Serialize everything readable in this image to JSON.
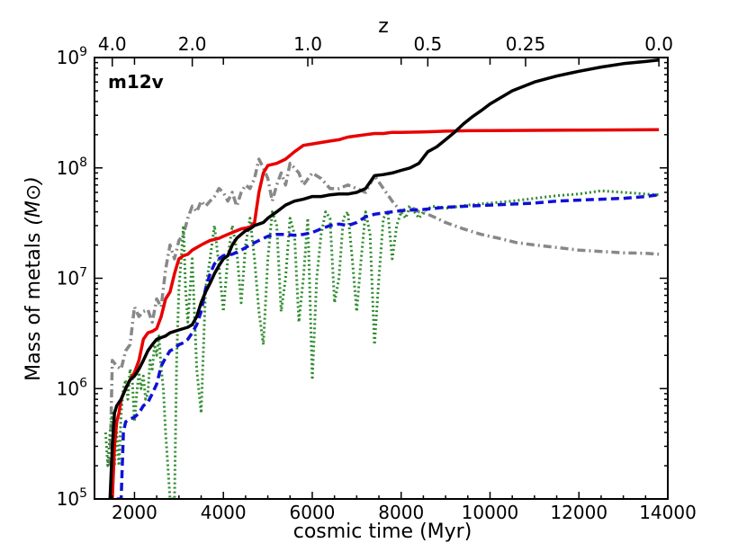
{
  "chart_data": {
    "type": "line",
    "panel_label": "m12v",
    "xlabel": "cosmic time (Myr)",
    "ylabel": "Mass of metals",
    "ylabel_unit": "(M⊙)",
    "top_axis_label": "z",
    "xlim": [
      1100,
      14000
    ],
    "ylim_log10": [
      5,
      9
    ],
    "yscale": "log",
    "x_ticks": [
      2000,
      4000,
      6000,
      8000,
      10000,
      12000,
      14000
    ],
    "x_tick_labels": [
      "2000",
      "4000",
      "6000",
      "8000",
      "10000",
      "12000",
      "14000"
    ],
    "y_ticks_log10": [
      5,
      6,
      7,
      8,
      9
    ],
    "y_tick_labels": [
      {
        "base": "10",
        "exp": "5"
      },
      {
        "base": "10",
        "exp": "6"
      },
      {
        "base": "10",
        "exp": "7"
      },
      {
        "base": "10",
        "exp": "8"
      },
      {
        "base": "10",
        "exp": "9"
      }
    ],
    "top_ticks": [
      {
        "z_label": "4.0",
        "time": 1500
      },
      {
        "z_label": "2.0",
        "time": 3300
      },
      {
        "z_label": "1.0",
        "time": 5900
      },
      {
        "z_label": "0.5",
        "time": 8600
      },
      {
        "z_label": "0.25",
        "time": 10800
      },
      {
        "z_label": "0.0",
        "time": 13800
      }
    ],
    "series": [
      {
        "name": "gray dash-dot",
        "color": "#888888",
        "style": "dashdot",
        "x": [
          1450,
          1500,
          1600,
          1700,
          1800,
          1900,
          2000,
          2100,
          2200,
          2300,
          2400,
          2500,
          2600,
          2700,
          2800,
          2900,
          3000,
          3100,
          3200,
          3300,
          3400,
          3500,
          3600,
          3700,
          3800,
          3900,
          4000,
          4100,
          4200,
          4300,
          4400,
          4500,
          4600,
          4700,
          4800,
          4900,
          5000,
          5100,
          5200,
          5300,
          5400,
          5500,
          5600,
          5700,
          5800,
          6000,
          6200,
          6400,
          6600,
          6800,
          7000,
          7200,
          7400,
          7600,
          7800,
          8000,
          8200,
          8400,
          8600,
          8800,
          9000,
          9400,
          9800,
          10200,
          10600,
          11000,
          11500,
          12000,
          12500,
          13000,
          13500,
          13800
        ],
        "y": [
          200000.0,
          1800000.0,
          1600000.0,
          1500000.0,
          2200000.0,
          2500000.0,
          5500000.0,
          4500000.0,
          5000000.0,
          5200000.0,
          4000000.0,
          6500000.0,
          5500000.0,
          12000000.0,
          20000000.0,
          15000000.0,
          22000000.0,
          25000000.0,
          35000000.0,
          45000000.0,
          40000000.0,
          50000000.0,
          45000000.0,
          50000000.0,
          55000000.0,
          65000000.0,
          60000000.0,
          50000000.0,
          60000000.0,
          45000000.0,
          60000000.0,
          70000000.0,
          65000000.0,
          80000000.0,
          120000000.0,
          100000000.0,
          80000000.0,
          50000000.0,
          70000000.0,
          90000000.0,
          70000000.0,
          110000000.0,
          100000000.0,
          90000000.0,
          70000000.0,
          90000000.0,
          80000000.0,
          65000000.0,
          65000000.0,
          70000000.0,
          65000000.0,
          60000000.0,
          85000000.0,
          65000000.0,
          50000000.0,
          40000000.0,
          45000000.0,
          40000000.0,
          38000000.0,
          35000000.0,
          32000000.0,
          28000000.0,
          25000000.0,
          23000000.0,
          21000000.0,
          20000000.0,
          19000000.0,
          18000000.0,
          17500000.0,
          17000000.0,
          16800000.0,
          16500000.0
        ]
      },
      {
        "name": "green dotted",
        "color": "#2e8b2e",
        "style": "dotted",
        "x": [
          1350,
          1400,
          1450,
          1500,
          1550,
          1600,
          1650,
          1700,
          1750,
          1800,
          1850,
          1900,
          1950,
          2000,
          2050,
          2100,
          2150,
          2200,
          2250,
          2300,
          2350,
          2400,
          2450,
          2500,
          2550,
          2600,
          2650,
          2700,
          2750,
          2800,
          2850,
          2900,
          2950,
          3000,
          3050,
          3100,
          3150,
          3200,
          3300,
          3400,
          3500,
          3600,
          3700,
          3800,
          3900,
          4000,
          4100,
          4200,
          4300,
          4400,
          4500,
          4600,
          4700,
          4800,
          4900,
          5000,
          5100,
          5200,
          5300,
          5400,
          5500,
          5600,
          5700,
          5800,
          5900,
          6000,
          6100,
          6200,
          6300,
          6400,
          6500,
          6600,
          6700,
          6800,
          6900,
          7000,
          7100,
          7200,
          7300,
          7400,
          7500,
          7600,
          7700,
          7800,
          7900,
          8000,
          8100,
          8200,
          8300,
          8400,
          8500,
          8700,
          9000,
          9500,
          10000,
          10500,
          11000,
          11500,
          12000,
          12500,
          13000,
          13500,
          13800
        ],
        "y": [
          400000.0,
          200000.0,
          400000.0,
          600000.0,
          200000.0,
          400000.0,
          200000.0,
          600000.0,
          1000000.0,
          1200000.0,
          800000.0,
          1500000.0,
          1200000.0,
          500000.0,
          900000.0,
          1400000.0,
          1000000.0,
          1300000.0,
          800000.0,
          900000.0,
          1800000.0,
          1500000.0,
          2500000.0,
          2000000.0,
          3000000.0,
          1500000.0,
          1000000.0,
          400000.0,
          200000.0,
          100000.0,
          100000.0,
          100000.0,
          2000000.0,
          8000000.0,
          15000000.0,
          30000000.0,
          8000000.0,
          4000000.0,
          15000000.0,
          1500000.0,
          600000.0,
          8000000.0,
          15000000.0,
          30000000.0,
          13000000.0,
          5000000.0,
          15000000.0,
          30000000.0,
          18000000.0,
          6000000.0,
          20000000.0,
          35000000.0,
          15000000.0,
          5000000.0,
          2500000.0,
          15000000.0,
          40000000.0,
          30000000.0,
          5000000.0,
          10000000.0,
          35000000.0,
          25000000.0,
          4000000.0,
          10000000.0,
          35000000.0,
          1200000.0,
          10000000.0,
          25000000.0,
          40000000.0,
          35000000.0,
          6000000.0,
          10000000.0,
          35000000.0,
          40000000.0,
          15000000.0,
          5000000.0,
          15000000.0,
          40000000.0,
          25000000.0,
          2500000.0,
          10000000.0,
          35000000.0,
          40000000.0,
          15000000.0,
          30000000.0,
          40000000.0,
          35000000.0,
          45000000.0,
          40000000.0,
          35000000.0,
          40000000.0,
          45000000.0,
          43000000.0,
          46000000.0,
          48000000.0,
          50000000.0,
          53000000.0,
          56000000.0,
          58000000.0,
          62000000.0,
          60000000.0,
          58000000.0,
          57000000.0
        ]
      },
      {
        "name": "blue dashed",
        "color": "#1010d8",
        "style": "dashed",
        "x": [
          1600,
          1700,
          1750,
          1800,
          1900,
          2000,
          2100,
          2200,
          2300,
          2400,
          2500,
          2600,
          2700,
          2800,
          2900,
          3000,
          3100,
          3200,
          3300,
          3400,
          3500,
          3600,
          3700,
          3800,
          3900,
          4000,
          4200,
          4400,
          4600,
          4800,
          5000,
          5200,
          5400,
          5600,
          5800,
          6000,
          6200,
          6400,
          6600,
          6800,
          7000,
          7200,
          7400,
          7600,
          7800,
          8000,
          8500,
          9000,
          9500,
          10000,
          10500,
          11000,
          11500,
          12000,
          12500,
          13000,
          13500,
          13800
        ],
        "y": [
          100000.0,
          100000.0,
          400000.0,
          500000.0,
          530000.0,
          550000.0,
          600000.0,
          700000.0,
          750000.0,
          900000.0,
          1100000.0,
          1600000.0,
          1900000.0,
          2200000.0,
          2300000.0,
          2500000.0,
          2600000.0,
          2800000.0,
          3200000.0,
          3800000.0,
          5000000.0,
          8000000.0,
          11000000.0,
          13500000.0,
          15000000.0,
          16000000.0,
          16500000.0,
          18000000.0,
          20000000.0,
          22000000.0,
          24000000.0,
          25000000.0,
          25000000.0,
          24500000.0,
          25000000.0,
          26000000.0,
          28000000.0,
          30000000.0,
          31000000.0,
          30000000.0,
          32000000.0,
          36000000.0,
          38000000.0,
          39000000.0,
          40000000.0,
          41000000.0,
          42000000.0,
          44000000.0,
          45000000.0,
          46000000.0,
          47000000.0,
          48000000.0,
          50000000.0,
          51000000.0,
          52000000.0,
          53000000.0,
          55000000.0,
          57000000.0
        ]
      },
      {
        "name": "red solid",
        "color": "#e80000",
        "style": "solid",
        "x": [
          1500,
          1550,
          1600,
          1650,
          1700,
          1800,
          1900,
          2000,
          2100,
          2200,
          2300,
          2400,
          2500,
          2600,
          2700,
          2800,
          2900,
          3000,
          3100,
          3200,
          3300,
          3400,
          3500,
          3600,
          3700,
          3800,
          3900,
          4000,
          4200,
          4400,
          4600,
          4700,
          4800,
          4900,
          5000,
          5200,
          5400,
          5600,
          5800,
          6000,
          6200,
          6400,
          6600,
          6800,
          7000,
          7200,
          7400,
          7600,
          7800,
          8000,
          8500,
          9000,
          9500,
          10000,
          11000,
          12000,
          13000,
          13800
        ],
        "y": [
          100000.0,
          300000.0,
          500000.0,
          600000.0,
          800000.0,
          1000000.0,
          1200000.0,
          1400000.0,
          1800000.0,
          2800000.0,
          3200000.0,
          3300000.0,
          3500000.0,
          4500000.0,
          6500000.0,
          7500000.0,
          11000000.0,
          15000000.0,
          16000000.0,
          16500000.0,
          18000000.0,
          19000000.0,
          20000000.0,
          21000000.0,
          22000000.0,
          22500000.0,
          23000000.0,
          24000000.0,
          26000000.0,
          28000000.0,
          29000000.0,
          32000000.0,
          60000000.0,
          90000000.0,
          105000000.0,
          110000000.0,
          120000000.0,
          140000000.0,
          160000000.0,
          165000000.0,
          170000000.0,
          175000000.0,
          180000000.0,
          190000000.0,
          195000000.0,
          200000000.0,
          205000000.0,
          205000000.0,
          210000000.0,
          210000000.0,
          212000000.0,
          215000000.0,
          217000000.0,
          218000000.0,
          219000000.0,
          220000000.0,
          221000000.0,
          222000000.0
        ]
      },
      {
        "name": "black solid",
        "color": "#000000",
        "style": "solid",
        "x": [
          1450,
          1500,
          1550,
          1600,
          1700,
          1800,
          1900,
          2000,
          2100,
          2200,
          2300,
          2400,
          2500,
          2600,
          2700,
          2800,
          2900,
          3000,
          3100,
          3200,
          3300,
          3400,
          3500,
          3600,
          3700,
          3800,
          3900,
          4000,
          4100,
          4200,
          4300,
          4400,
          4500,
          4600,
          4700,
          4800,
          4900,
          5000,
          5200,
          5400,
          5600,
          5800,
          6000,
          6200,
          6400,
          6600,
          6800,
          7000,
          7200,
          7400,
          7600,
          7800,
          8000,
          8200,
          8400,
          8600,
          8800,
          9000,
          9200,
          9400,
          9600,
          9800,
          10000,
          10500,
          11000,
          11500,
          12000,
          12500,
          13000,
          13500,
          13800
        ],
        "y": [
          100000.0,
          300000.0,
          600000.0,
          700000.0,
          800000.0,
          1000000.0,
          1200000.0,
          1300000.0,
          1500000.0,
          1800000.0,
          2200000.0,
          2500000.0,
          2800000.0,
          2900000.0,
          3000000.0,
          3200000.0,
          3300000.0,
          3400000.0,
          3500000.0,
          3600000.0,
          3800000.0,
          4500000.0,
          6000000.0,
          7500000.0,
          9000000.0,
          11000000.0,
          13000000.0,
          15000000.0,
          16000000.0,
          20000000.0,
          23000000.0,
          25000000.0,
          27000000.0,
          28000000.0,
          30000000.0,
          31000000.0,
          32000000.0,
          35000000.0,
          40000000.0,
          46000000.0,
          50000000.0,
          52000000.0,
          55000000.0,
          55000000.0,
          57000000.0,
          58000000.0,
          58000000.0,
          60000000.0,
          65000000.0,
          85000000.0,
          87000000.0,
          90000000.0,
          95000000.0,
          100000000.0,
          110000000.0,
          140000000.0,
          155000000.0,
          180000000.0,
          210000000.0,
          250000000.0,
          290000000.0,
          330000000.0,
          380000000.0,
          500000000.0,
          600000000.0,
          680000000.0,
          750000000.0,
          820000000.0,
          880000000.0,
          920000000.0,
          950000000.0
        ]
      }
    ]
  }
}
